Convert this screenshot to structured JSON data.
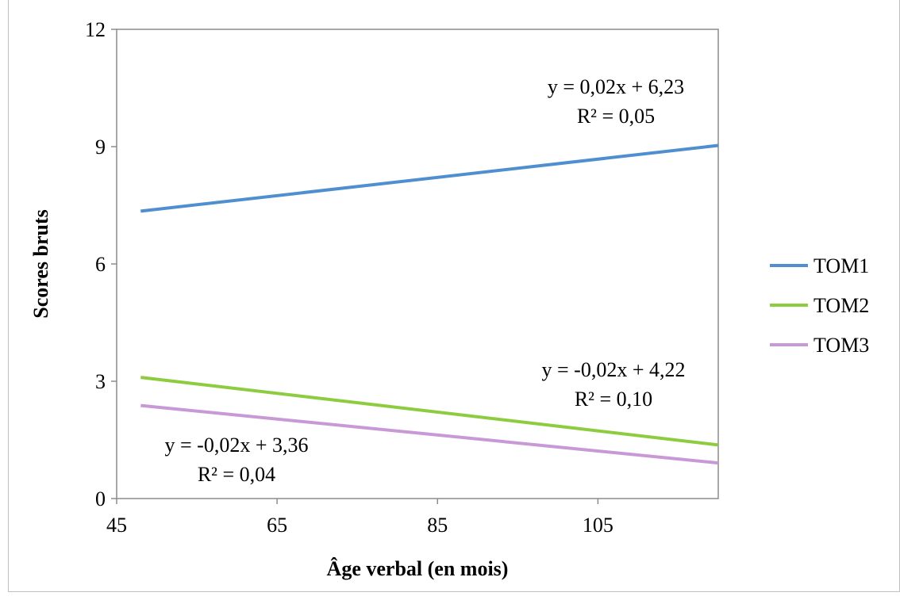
{
  "chart_data": {
    "type": "line",
    "xlabel": "Âge verbal (en mois)",
    "ylabel": "Scores bruts",
    "xlim": [
      45,
      120
    ],
    "ylim": [
      0,
      12
    ],
    "x_ticks": [
      "45",
      "65",
      "85",
      "105"
    ],
    "y_ticks": [
      "0",
      "3",
      "6",
      "9",
      "12"
    ],
    "grid": false,
    "legend_position": "right",
    "series": [
      {
        "name": "TOM1",
        "color": "#4f8fd0",
        "x": [
          48,
          120
        ],
        "y": [
          7.35,
          9.03
        ]
      },
      {
        "name": "TOM2",
        "color": "#8ccc3e",
        "x": [
          48,
          120
        ],
        "y": [
          3.1,
          1.37
        ]
      },
      {
        "name": "TOM3",
        "color": "#c899d6",
        "x": [
          48,
          120
        ],
        "y": [
          2.38,
          0.91
        ]
      }
    ],
    "annotations": [
      {
        "equation": "y = 0,02x + 6,23",
        "r2": "R² = 0,05"
      },
      {
        "equation": "y = -0,02x + 4,22",
        "r2": "R² = 0,10"
      },
      {
        "equation": "y = -0,02x + 3,36",
        "r2": "R² = 0,04"
      }
    ]
  }
}
